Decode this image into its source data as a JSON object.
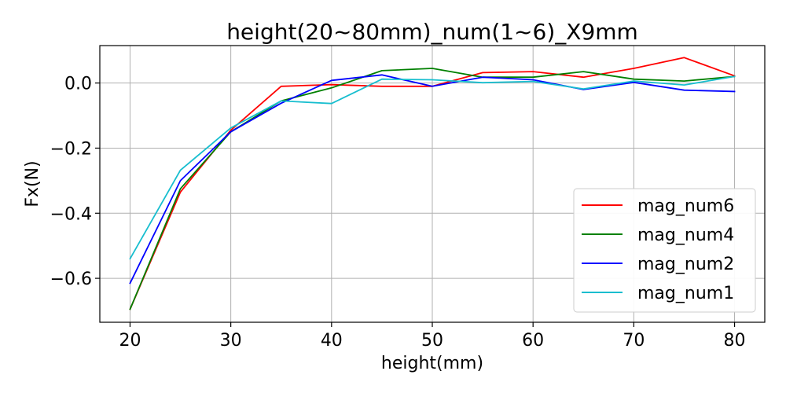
{
  "chart_data": {
    "type": "line",
    "title": "height(20~80mm)_num(1~6)_X9mm",
    "xlabel": "height(mm)",
    "ylabel": "Fx(N)",
    "x": [
      20,
      25,
      30,
      35,
      40,
      45,
      50,
      55,
      60,
      65,
      70,
      75,
      80
    ],
    "xlim": [
      17,
      83
    ],
    "ylim": [
      -0.735,
      0.115
    ],
    "xticks": [
      20,
      30,
      40,
      50,
      60,
      70,
      80
    ],
    "yticks": [
      0.0,
      -0.2,
      -0.4,
      -0.6
    ],
    "ytick_labels": [
      "0.0",
      "−0.2",
      "−0.4",
      "−0.6"
    ],
    "grid": true,
    "legend_position": "lower-right",
    "series": [
      {
        "name": "mag_num6",
        "color": "#ff0000",
        "values": [
          -0.695,
          -0.335,
          -0.145,
          -0.01,
          -0.005,
          -0.01,
          -0.01,
          0.032,
          0.035,
          0.018,
          0.045,
          0.078,
          0.022
        ]
      },
      {
        "name": "mag_num4",
        "color": "#008000",
        "values": [
          -0.695,
          -0.325,
          -0.15,
          -0.055,
          -0.015,
          0.038,
          0.045,
          0.018,
          0.018,
          0.035,
          0.012,
          0.006,
          0.02
        ]
      },
      {
        "name": "mag_num2",
        "color": "#0000ff",
        "values": [
          -0.615,
          -0.3,
          -0.15,
          -0.062,
          0.008,
          0.025,
          -0.01,
          0.018,
          0.01,
          -0.02,
          0.002,
          -0.022,
          -0.026
        ]
      },
      {
        "name": "mag_num1",
        "color": "#17becf",
        "values": [
          -0.54,
          -0.268,
          -0.138,
          -0.055,
          -0.063,
          0.012,
          0.01,
          0.001,
          0.005,
          -0.018,
          0.006,
          -0.006,
          0.02
        ]
      }
    ]
  }
}
